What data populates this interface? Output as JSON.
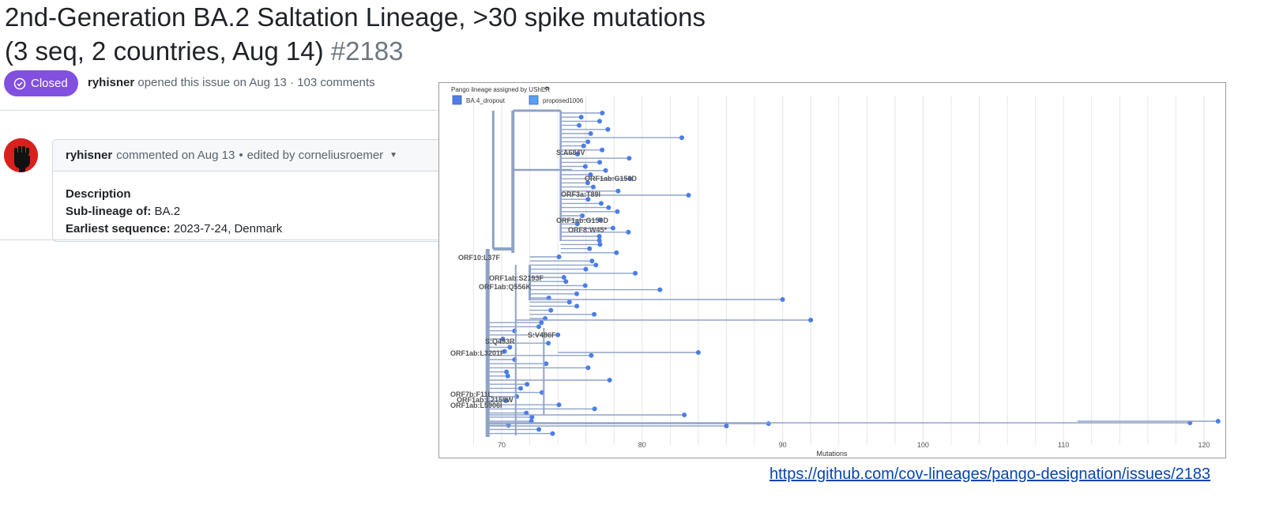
{
  "issue": {
    "title_line1": "2nd-Generation BA.2 Saltation Lineage, >30 spike mutations",
    "title_line2": "(3 seq, 2 countries, Aug 14)",
    "number": "#2183",
    "state": "Closed",
    "author": "ryhisner",
    "meta_text": "opened this issue on Aug 13 · 103 comments"
  },
  "comment": {
    "author": "ryhisner",
    "action": "commented on Aug 13",
    "edited": "edited by corneliusroemer",
    "heading": "Description",
    "fields": [
      {
        "label": "Sub-lineage of:",
        "value": "BA.2"
      },
      {
        "label": "Earliest sequence:",
        "value": "2023-7-24, Denmark"
      }
    ]
  },
  "tree": {
    "legend_title": "Pango lineage assigned by UShER",
    "legend_items": [
      {
        "label": "BA.4_dropout",
        "color": "#4f7ee6"
      },
      {
        "label": "proposed1006",
        "color": "#5aa0f0"
      }
    ],
    "x_axis_label": "Mutations",
    "x_ticks": [
      "70",
      "80",
      "90",
      "100",
      "110",
      "120"
    ],
    "branch_labels": [
      "S:A684V",
      "ORF1ab:G150D",
      "ORF3a:T89I",
      "ORF1ab:G150D",
      "ORF8:W45*",
      "ORF10:L37F",
      "ORF1ab:S2193F",
      "ORF1ab:Q556K",
      "S:Q493R",
      "S:V486F",
      "ORF1ab:L3201F",
      "ORF7b:F11L",
      "ORF1ab:L2159W",
      "ORF1ab:L5906I"
    ],
    "branch_color": "#8fa3c7",
    "tip_color": "#4a7de8"
  },
  "footer_link": "https://github.com/cov-lineages/pango-designation/issues/2183"
}
